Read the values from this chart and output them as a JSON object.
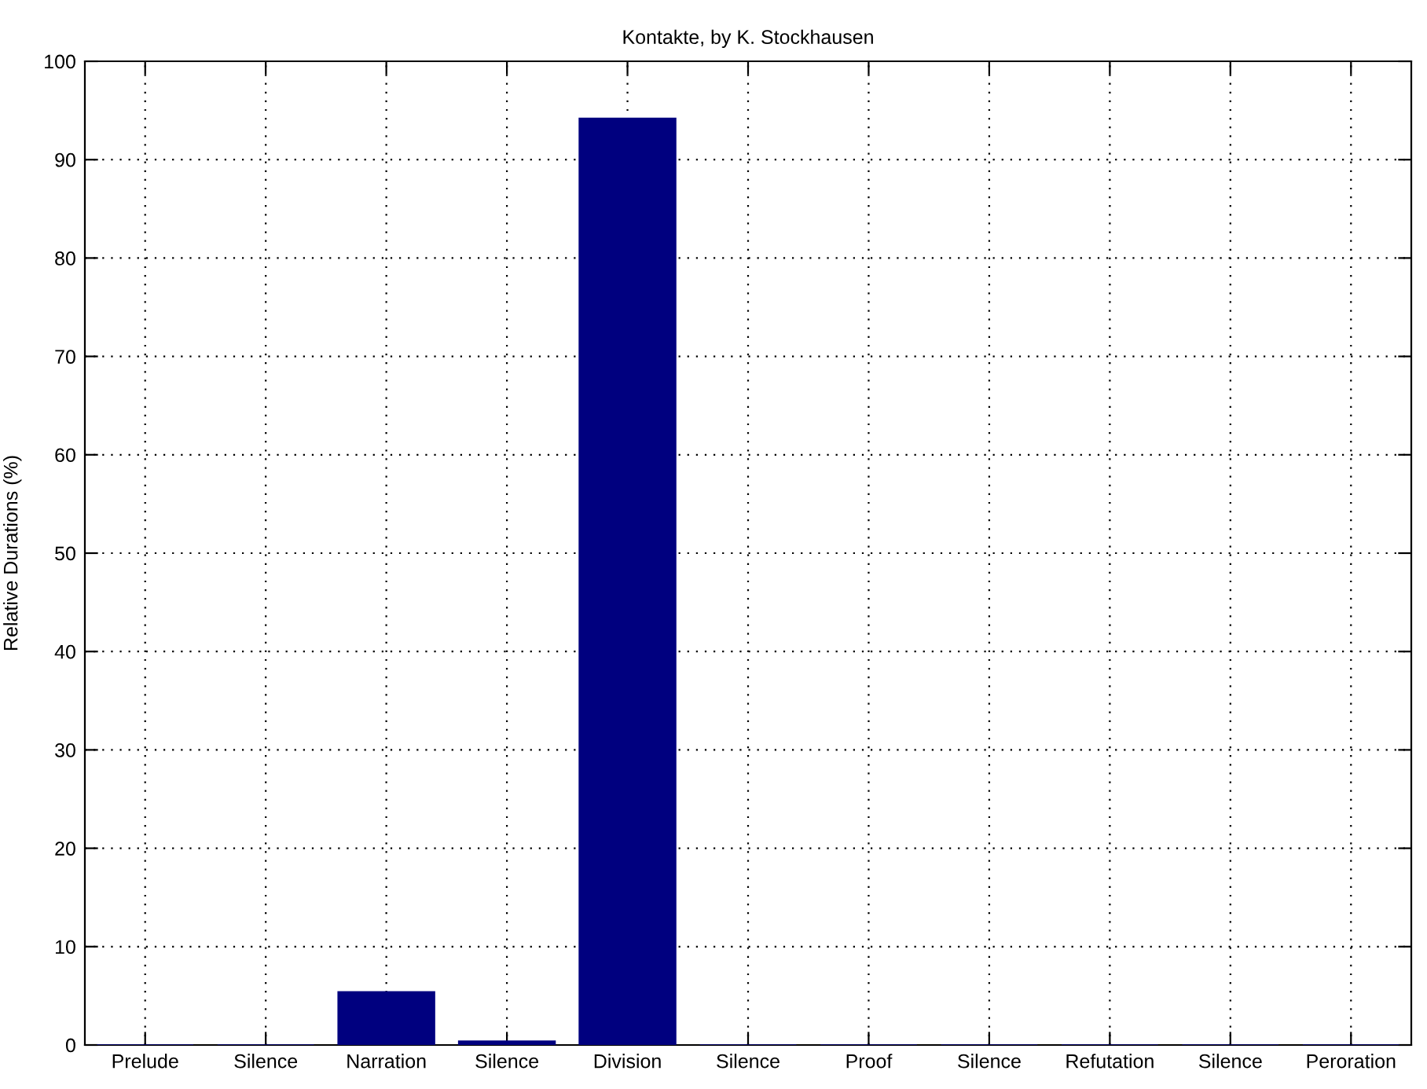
{
  "chart_data": {
    "type": "bar",
    "title": "Kontakte, by K. Stockhausen",
    "ylabel": "Relative Durations (%)",
    "categories": [
      "Prelude",
      "Silence",
      "Narration",
      "Silence",
      "Division",
      "Silence",
      "Proof",
      "Silence",
      "Refutation",
      "Silence",
      "Peroration"
    ],
    "values": [
      0,
      0,
      5.4,
      0.4,
      94.2,
      0,
      0,
      0,
      0,
      0,
      0
    ],
    "color": "#00007f",
    "ylim": [
      0,
      100
    ],
    "yticks": [
      0,
      10,
      20,
      30,
      40,
      50,
      60,
      70,
      80,
      90,
      100
    ],
    "grid": true
  }
}
